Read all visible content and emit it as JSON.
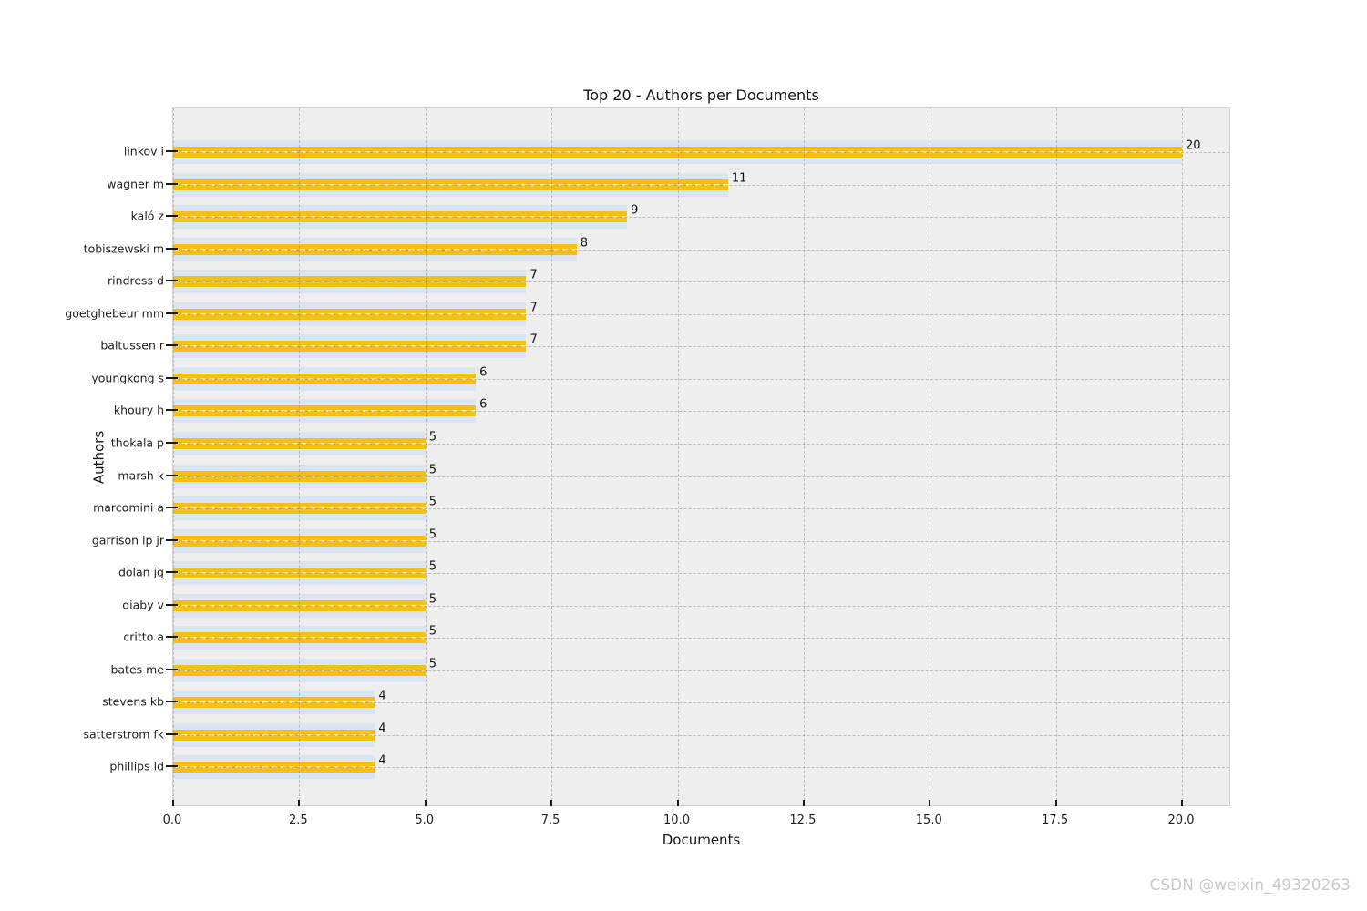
{
  "chart_data": {
    "type": "bar",
    "orientation": "horizontal",
    "title": "Top 20 - Authors per Documents",
    "xlabel": "Documents",
    "ylabel": "Authors",
    "categories": [
      "linkov i",
      "wagner m",
      "kaló z",
      "tobiszewski m",
      "rindress d",
      "goetghebeur mm",
      "baltussen r",
      "youngkong s",
      "khoury h",
      "thokala p",
      "marsh k",
      "marcomini a",
      "garrison lp jr",
      "dolan jg",
      "diaby v",
      "critto a",
      "bates me",
      "stevens kb",
      "satterstrom fk",
      "phillips ld"
    ],
    "values": [
      20,
      11,
      9,
      8,
      7,
      7,
      7,
      6,
      6,
      5,
      5,
      5,
      5,
      5,
      5,
      5,
      5,
      4,
      4,
      4
    ],
    "value_labels": [
      "20",
      "11",
      "9",
      "8",
      "7",
      "7",
      "7",
      "6",
      "6",
      "5",
      "5",
      "5",
      "5",
      "5",
      "5",
      "5",
      "5",
      "4",
      "4",
      "4"
    ],
    "x_ticks": [
      0.0,
      2.5,
      5.0,
      7.5,
      10.0,
      12.5,
      15.0,
      17.5,
      20.0
    ],
    "x_tick_labels": [
      "0.0",
      "2.5",
      "5.0",
      "7.5",
      "10.0",
      "12.5",
      "15.0",
      "17.5",
      "20.0"
    ],
    "xlim": [
      0.0,
      20.97
    ],
    "grid": "both-axes-dashed",
    "legend": "none",
    "colors": {
      "bar": "#f5c013",
      "band": "#dbe5f2",
      "plot_bg": "#eeeeee",
      "spine": "#d2d2d2",
      "tick": "#1a1a1a",
      "text": "#1f1f1f"
    }
  },
  "watermark": {
    "text": "CSDN @weixin_49320263"
  }
}
